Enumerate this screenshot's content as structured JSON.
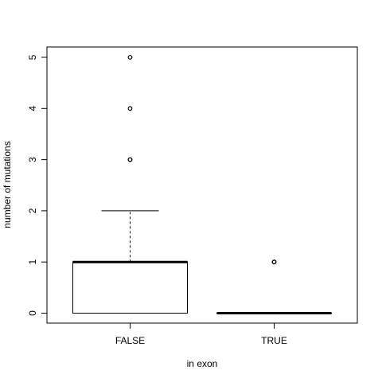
{
  "chart_data": {
    "type": "box",
    "title": "",
    "xlabel": "in exon",
    "ylabel": "number of mutations",
    "ylim": [
      -0.2,
      5.2
    ],
    "y_ticks": [
      0,
      1,
      2,
      3,
      4,
      5
    ],
    "y_tick_labels": [
      "0",
      "1",
      "2",
      "3",
      "4",
      "5"
    ],
    "categories": [
      "FALSE",
      "TRUE"
    ],
    "boxes": [
      {
        "category": "FALSE",
        "whisker_low": 0,
        "q1": 0,
        "median": 1,
        "q3": 1,
        "whisker_high": 2,
        "outliers": [
          3,
          3,
          4,
          5
        ]
      },
      {
        "category": "TRUE",
        "whisker_low": 0,
        "q1": 0,
        "median": 0,
        "q3": 0,
        "whisker_high": 0,
        "outliers": [
          1,
          1
        ]
      }
    ],
    "grid": false,
    "legend": "none"
  }
}
